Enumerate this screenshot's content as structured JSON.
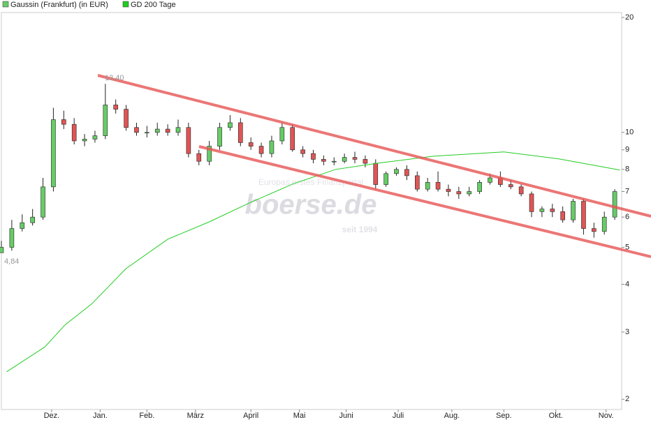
{
  "chart_data": {
    "type": "candlestick",
    "log_scale": true,
    "x": [
      0,
      6,
      12,
      18,
      24,
      30,
      36,
      42,
      48,
      54,
      60,
      66,
      72,
      78,
      84,
      90,
      96,
      102,
      108,
      114,
      120,
      126,
      132,
      138,
      144,
      150,
      156,
      162,
      168,
      174,
      180,
      186,
      192,
      198,
      204,
      210,
      216,
      222,
      228,
      234,
      240,
      246,
      252,
      258,
      264,
      270,
      276,
      282,
      288,
      294,
      300,
      306,
      312,
      318,
      324,
      330,
      336,
      342,
      348,
      354
    ],
    "series": [
      {
        "name": "Gaussin (Frankfurt) (in EUR)",
        "color": "#66cc66",
        "down_color": "#e05555",
        "open": [
          4.84,
          5.0,
          5.6,
          5.8,
          6.0,
          7.2,
          10.8,
          10.5,
          9.5,
          9.6,
          9.8,
          11.8,
          11.5,
          10.3,
          10.0,
          10.0,
          10.2,
          10.0,
          10.3,
          8.8,
          8.4,
          9.2,
          10.3,
          10.6,
          9.4,
          9.2,
          8.8,
          9.5,
          10.3,
          9.0,
          8.8,
          8.5,
          8.4,
          8.4,
          8.6,
          8.5,
          8.3,
          7.3,
          7.8,
          8.0,
          7.7,
          7.1,
          7.4,
          7.1,
          7.0,
          6.9,
          7.0,
          7.4,
          7.6,
          7.3,
          7.2,
          6.9,
          6.2,
          6.3,
          6.2,
          5.9,
          6.6,
          5.6,
          5.5,
          6.0
        ],
        "high": [
          5.2,
          5.9,
          6.1,
          6.3,
          7.6,
          11.6,
          11.4,
          10.9,
          9.9,
          10.1,
          13.4,
          12.2,
          11.8,
          10.6,
          10.4,
          10.6,
          10.5,
          10.8,
          10.6,
          9.0,
          9.5,
          10.6,
          11.1,
          10.9,
          9.7,
          9.4,
          9.8,
          10.6,
          10.5,
          9.2,
          9.0,
          8.7,
          8.6,
          8.8,
          8.9,
          8.7,
          8.5,
          7.9,
          8.1,
          8.2,
          7.9,
          7.6,
          7.9,
          7.3,
          7.2,
          7.2,
          7.5,
          7.8,
          7.9,
          7.5,
          7.3,
          7.0,
          6.4,
          6.5,
          6.4,
          6.7,
          6.7,
          5.8,
          6.2,
          7.1
        ],
        "low": [
          4.84,
          4.9,
          5.5,
          5.7,
          5.9,
          7.0,
          10.2,
          9.3,
          9.2,
          9.4,
          9.6,
          11.2,
          10.1,
          9.8,
          9.7,
          9.8,
          9.8,
          9.8,
          8.6,
          8.2,
          8.2,
          9.0,
          10.1,
          9.2,
          9.0,
          8.6,
          8.6,
          9.3,
          8.9,
          8.6,
          8.3,
          8.2,
          8.2,
          8.3,
          8.3,
          8.1,
          7.1,
          7.2,
          7.7,
          7.5,
          7.0,
          7.0,
          7.0,
          6.8,
          6.7,
          6.8,
          6.9,
          7.3,
          7.2,
          7.1,
          6.8,
          6.0,
          6.0,
          6.0,
          5.8,
          5.8,
          5.4,
          5.3,
          5.4,
          5.9
        ],
        "close": [
          5.0,
          5.6,
          5.8,
          6.0,
          7.2,
          10.8,
          10.5,
          9.5,
          9.6,
          9.8,
          11.8,
          11.5,
          10.3,
          10.0,
          10.0,
          10.2,
          10.0,
          10.3,
          8.8,
          8.4,
          9.2,
          10.3,
          10.6,
          9.4,
          9.2,
          8.8,
          9.5,
          10.3,
          9.0,
          8.8,
          8.5,
          8.4,
          8.4,
          8.6,
          8.5,
          8.3,
          7.3,
          7.8,
          8.0,
          7.7,
          7.1,
          7.4,
          7.1,
          7.0,
          6.9,
          7.0,
          7.4,
          7.6,
          7.3,
          7.2,
          6.9,
          6.2,
          6.3,
          6.2,
          5.9,
          6.6,
          5.6,
          5.5,
          6.0,
          7.0
        ]
      },
      {
        "name": "GD 200 Tage",
        "color": "#22cc22",
        "type": "line",
        "x": [
          3,
          25,
          37,
          52,
          72,
          96,
          120,
          144,
          168,
          193,
          217,
          249,
          290,
          322,
          357
        ],
        "values": [
          2.36,
          2.74,
          3.14,
          3.55,
          4.4,
          5.25,
          5.83,
          6.56,
          7.32,
          8.0,
          8.3,
          8.66,
          8.89,
          8.52,
          7.97
        ]
      }
    ],
    "xlim": [
      0,
      358
    ],
    "xticks": [
      {
        "value": 29,
        "label": "Dez."
      },
      {
        "value": 57,
        "label": "Jan."
      },
      {
        "value": 84,
        "label": "Feb."
      },
      {
        "value": 112,
        "label": "März"
      },
      {
        "value": 144,
        "label": "April"
      },
      {
        "value": 172,
        "label": "Mai"
      },
      {
        "value": 199,
        "label": "Juni"
      },
      {
        "value": 229,
        "label": "Juli"
      },
      {
        "value": 260,
        "label": "Aug."
      },
      {
        "value": 290,
        "label": "Sep."
      },
      {
        "value": 320,
        "label": "Okt."
      },
      {
        "value": 349,
        "label": "Nov."
      }
    ],
    "ylim": [
      1.88,
      20.6
    ],
    "yticks": [
      2,
      3,
      4,
      5,
      6,
      7,
      8,
      9,
      10,
      20
    ],
    "annotations": [
      "13,40",
      "4,84"
    ],
    "watermark": {
      "tagline": "Europas erstes Finanzportal",
      "brand": "boerse.de",
      "since": "seit 1994"
    }
  }
}
